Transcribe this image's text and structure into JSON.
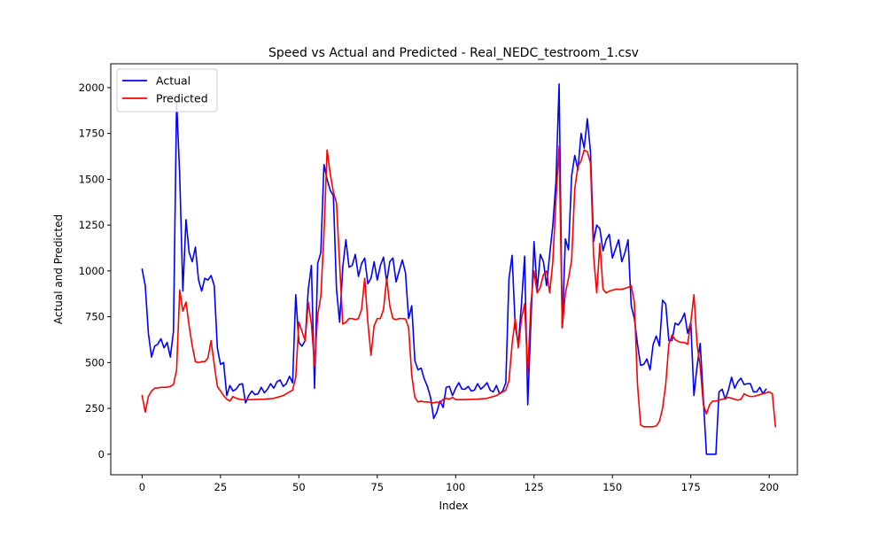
{
  "chart_data": {
    "type": "line",
    "title": "Speed vs Actual and Predicted - Real_NEDC_testroom_1.csv",
    "xlabel": "Index",
    "ylabel": "Actual and Predicted",
    "xlim": [
      -10,
      209
    ],
    "ylim": [
      -112,
      2130
    ],
    "xticks": [
      0,
      25,
      50,
      75,
      100,
      125,
      150,
      175,
      200
    ],
    "yticks": [
      0,
      250,
      500,
      750,
      1000,
      1250,
      1500,
      1750,
      2000
    ],
    "grid": false,
    "legend_position": "top-left",
    "series": [
      {
        "name": "Actual",
        "color": "#0000ff",
        "values": [
          1010,
          920,
          660,
          530,
          590,
          600,
          630,
          580,
          610,
          530,
          670,
          1930,
          1520,
          890,
          1280,
          1100,
          1050,
          1130,
          950,
          890,
          960,
          950,
          975,
          920,
          580,
          490,
          500,
          320,
          375,
          345,
          355,
          380,
          385,
          280,
          320,
          345,
          325,
          330,
          365,
          335,
          355,
          385,
          360,
          395,
          405,
          370,
          385,
          425,
          390,
          870,
          610,
          590,
          620,
          900,
          1030,
          360,
          1040,
          1100,
          1580,
          1500,
          1440,
          1410,
          900,
          720,
          1020,
          1170,
          1020,
          1030,
          1090,
          970,
          1040,
          1070,
          930,
          960,
          1050,
          950,
          1030,
          1075,
          940,
          1050,
          1070,
          940,
          1000,
          1060,
          990,
          740,
          810,
          510,
          460,
          470,
          410,
          370,
          310,
          195,
          230,
          290,
          255,
          365,
          370,
          320,
          360,
          390,
          355,
          355,
          370,
          345,
          350,
          385,
          355,
          370,
          390,
          350,
          340,
          375,
          330,
          345,
          390,
          955,
          1085,
          700,
          600,
          820,
          1080,
          270,
          720,
          1160,
          895,
          1090,
          1050,
          920,
          1090,
          1250,
          1490,
          2020,
          690,
          1175,
          1115,
          1520,
          1630,
          1550,
          1750,
          1670,
          1830,
          1650,
          1160,
          1250,
          1230,
          1110,
          1170,
          1200,
          1070,
          1120,
          1170,
          1050,
          1100,
          1170,
          810,
          740,
          600,
          485,
          490,
          520,
          460,
          600,
          645,
          590,
          840,
          820,
          620,
          620,
          715,
          705,
          730,
          770,
          660,
          720,
          320,
          480,
          605,
          300,
          0,
          0,
          0,
          0,
          340,
          355,
          300,
          350,
          420,
          360,
          395,
          415,
          380,
          385,
          385,
          340,
          340,
          365,
          330,
          355
        ]
      },
      {
        "name": "Predicted",
        "color": "#ff0000",
        "values": [
          320,
          230,
          315,
          345,
          360,
          362,
          365,
          365,
          366,
          370,
          380,
          460,
          895,
          780,
          830,
          700,
          590,
          505,
          500,
          505,
          505,
          525,
          620,
          490,
          370,
          345,
          320,
          300,
          290,
          315,
          305,
          300,
          298,
          298,
          298,
          298,
          299,
          299,
          300,
          300,
          302,
          303,
          305,
          310,
          315,
          320,
          330,
          340,
          350,
          420,
          720,
          670,
          620,
          830,
          710,
          480,
          760,
          860,
          1200,
          1660,
          1530,
          1430,
          1370,
          1040,
          710,
          720,
          740,
          740,
          735,
          740,
          790,
          960,
          720,
          540,
          700,
          740,
          740,
          790,
          960,
          810,
          740,
          735,
          740,
          740,
          738,
          690,
          430,
          310,
          285,
          290,
          285,
          285,
          283,
          280,
          285,
          280,
          300,
          305,
          300,
          310,
          298,
          298,
          298,
          298,
          299,
          299,
          300,
          300,
          302,
          303,
          305,
          310,
          315,
          320,
          330,
          340,
          350,
          400,
          600,
          740,
          580,
          740,
          820,
          440,
          820,
          1000,
          880,
          910,
          980,
          1000,
          880,
          1050,
          1390,
          1680,
          690,
          880,
          960,
          1060,
          1450,
          1570,
          1600,
          1660,
          1650,
          1590,
          1080,
          880,
          1150,
          900,
          880,
          890,
          895,
          900,
          900,
          900,
          905,
          910,
          920,
          830,
          380,
          160,
          150,
          150,
          150,
          150,
          155,
          180,
          250,
          380,
          600,
          650,
          625,
          615,
          610,
          610,
          600,
          720,
          870,
          600,
          480,
          270,
          220,
          270,
          290,
          290,
          295,
          300,
          305,
          310,
          305,
          300,
          295,
          300,
          330,
          320,
          315,
          315,
          320,
          325,
          330,
          335,
          340,
          330,
          150
        ]
      }
    ]
  }
}
